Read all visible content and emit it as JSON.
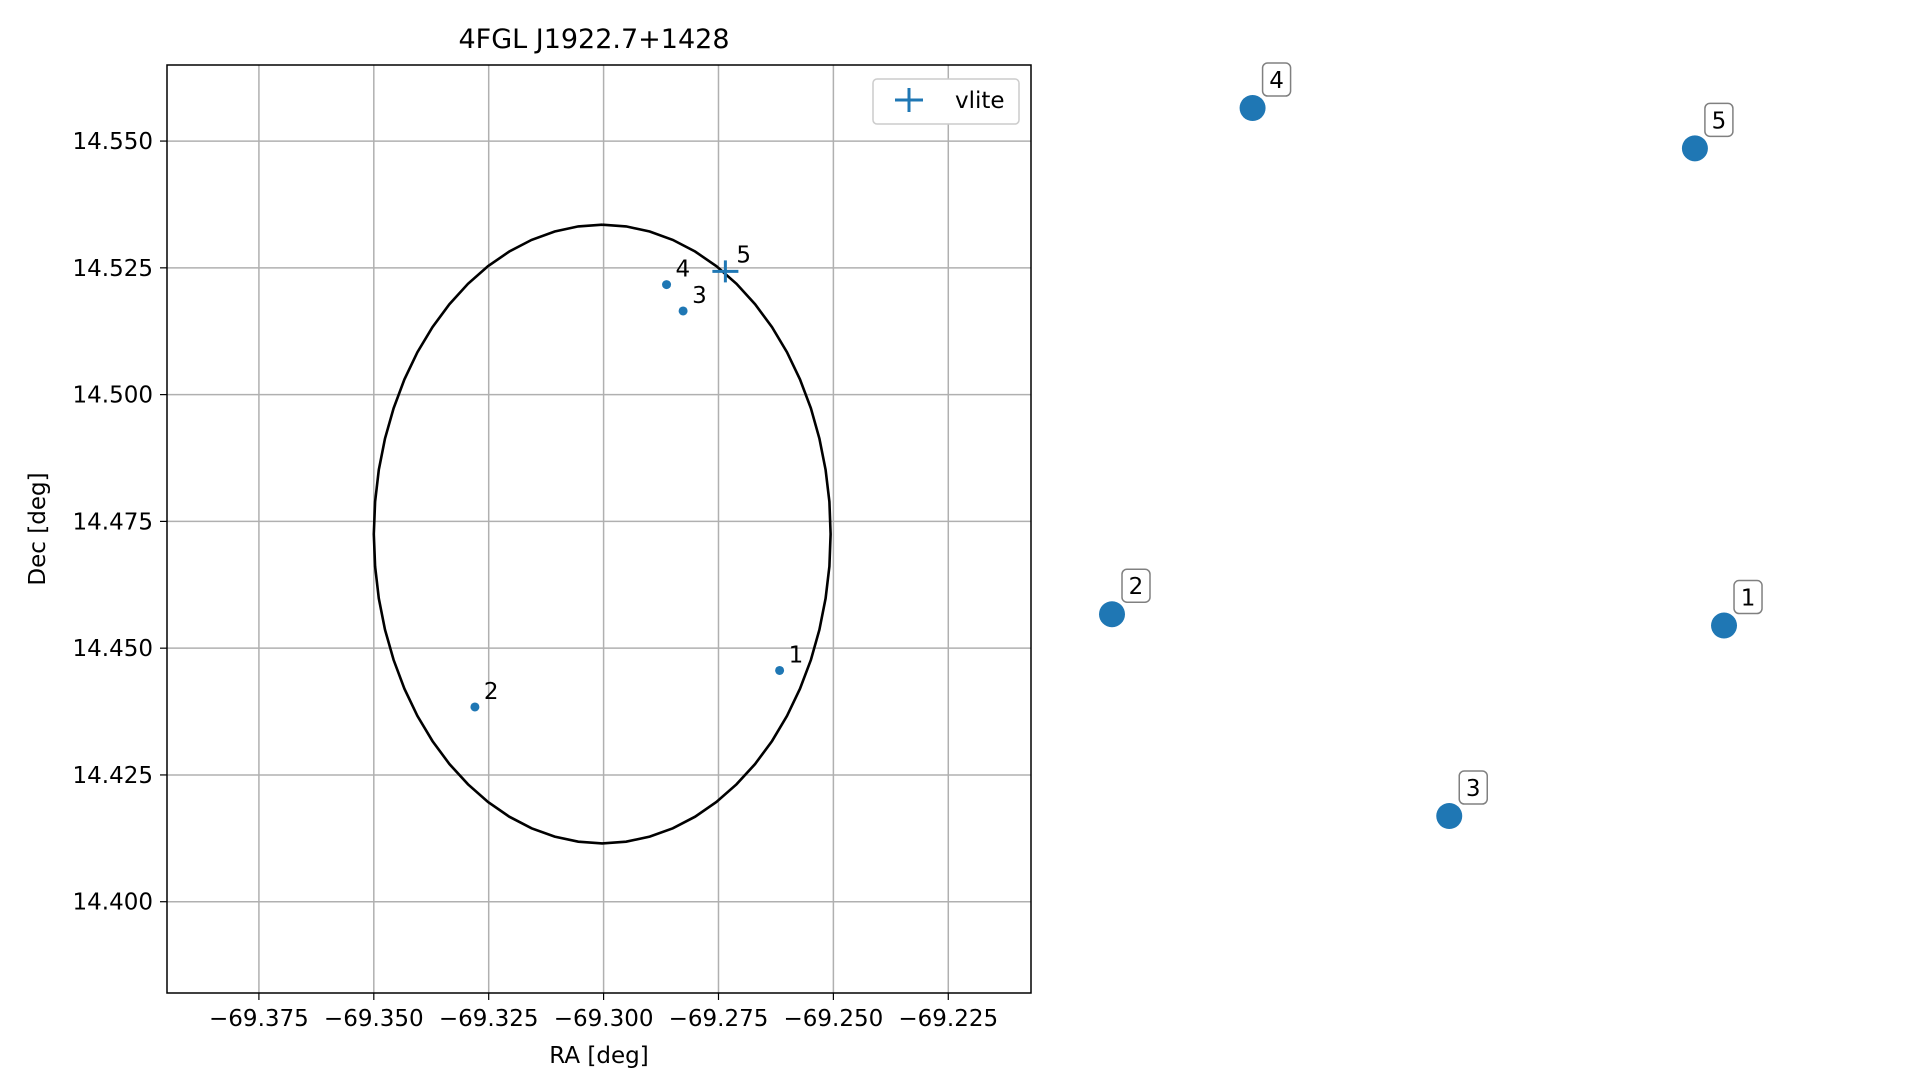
{
  "chart_data": [
    {
      "type": "scatter",
      "title": "4FGL J1922.7+1428",
      "xlabel": "RA [deg]",
      "ylabel": "Dec [deg]",
      "xlim": [
        -69.395,
        -69.207
      ],
      "ylim": [
        14.382,
        14.565
      ],
      "grid": true,
      "xticks": [
        -69.375,
        -69.35,
        -69.325,
        -69.3,
        -69.275,
        -69.25,
        -69.225
      ],
      "xtick_labels": [
        "−69.375",
        "−69.350",
        "−69.325",
        "−69.300",
        "−69.275",
        "−69.250",
        "−69.225"
      ],
      "yticks": [
        14.4,
        14.425,
        14.45,
        14.475,
        14.5,
        14.525,
        14.55
      ],
      "ytick_labels": [
        "14.400",
        "14.425",
        "14.450",
        "14.475",
        "14.500",
        "14.525",
        "14.550"
      ],
      "points": [
        {
          "label": "1",
          "x": -69.2617,
          "y": 14.4456
        },
        {
          "label": "2",
          "x": -69.328,
          "y": 14.4384
        },
        {
          "label": "3",
          "x": -69.2827,
          "y": 14.5165
        },
        {
          "label": "4",
          "x": -69.2863,
          "y": 14.5217
        }
      ],
      "ellipse": {
        "center_x": -69.3003,
        "center_y": 14.4725,
        "semi_x": 0.0497,
        "semi_y": 0.061,
        "color": "#000000"
      },
      "vlite": {
        "label": "5",
        "x": -69.2735,
        "y": 14.5243
      },
      "legend": {
        "placement": "upper-right",
        "entries": [
          {
            "name": "vlite"
          }
        ]
      },
      "colors": {
        "points": "#1f77b4",
        "grid": "#b0b0b0"
      }
    },
    {
      "type": "scatter",
      "axes": "off",
      "points": [
        {
          "label": "1",
          "x": 0.862,
          "y": 0.269
        },
        {
          "label": "2",
          "x": 0.0,
          "y": 0.285
        },
        {
          "label": "3",
          "x": 0.475,
          "y": 0.0
        },
        {
          "label": "4",
          "x": 0.198,
          "y": 1.0
        },
        {
          "label": "5",
          "x": 0.821,
          "y": 0.943
        }
      ],
      "colors": {
        "points": "#1f77b4",
        "label_box_edge": "#808080"
      }
    }
  ]
}
